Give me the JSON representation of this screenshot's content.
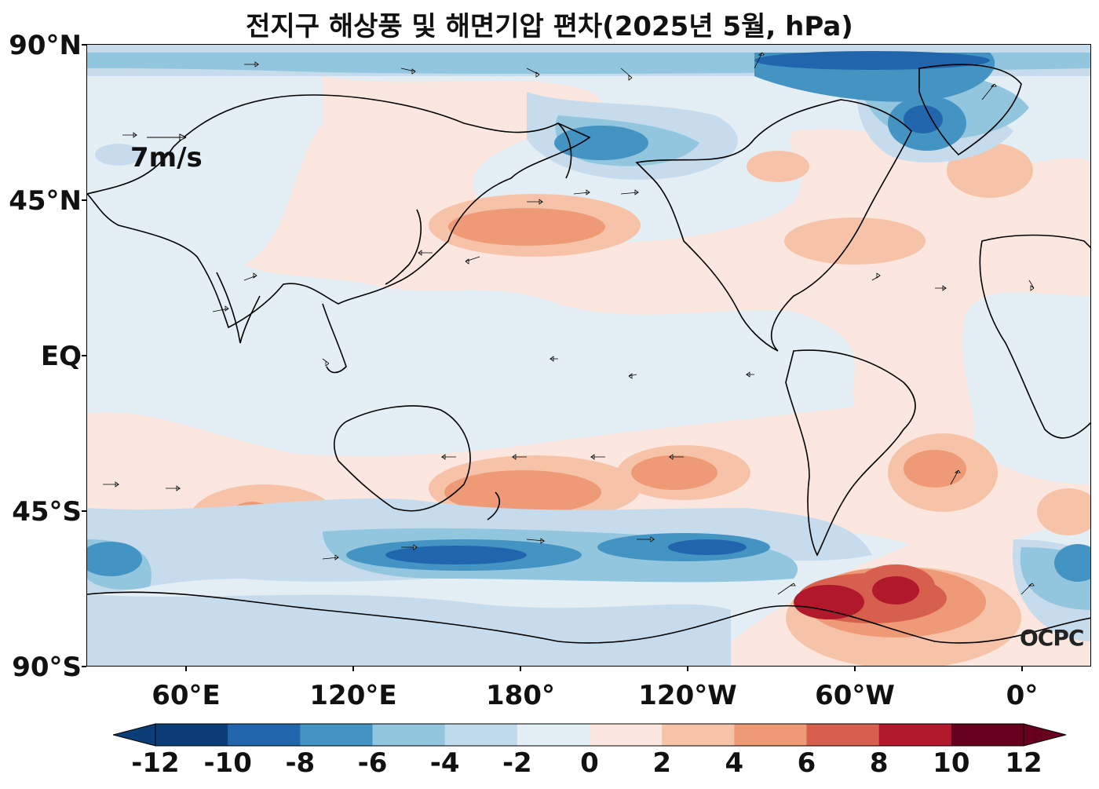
{
  "title": "전지구 해상풍 및 해면기압 편차(2025년 5월, hPa)",
  "lat_labels": [
    "90°N",
    "45°N",
    "EQ",
    "45°S",
    "90°S"
  ],
  "lon_labels": [
    "60°E",
    "120°E",
    "180°",
    "120°W",
    "60°W",
    "0°"
  ],
  "reference_vector_label": "7m/s",
  "logo_text": "OCPC",
  "colorbar": {
    "ticks": [
      "-12",
      "-10",
      "-8",
      "-6",
      "-4",
      "-2",
      "0",
      "2",
      "4",
      "6",
      "8",
      "10",
      "12"
    ],
    "colors": [
      "#0b3d79",
      "#2166ac",
      "#4393c3",
      "#92c5de",
      "#bfdaea",
      "#e4eef5",
      "#fbe7df",
      "#f7c3a8",
      "#ee9a76",
      "#d6604d",
      "#b2182b",
      "#67001f"
    ],
    "extend": "both"
  },
  "palette": {
    "neg_strong": "#2166ac",
    "neg_mid": "#4393c3",
    "neg_weak": "#92c5de",
    "neg_light": "#c6dcec",
    "neutral_neg": "#e4eef5",
    "neutral_pos": "#fbe7df",
    "pos_light": "#f7c3a8",
    "pos_mid": "#ee9a76",
    "pos_strong": "#d6604d",
    "pos_max": "#b2182b",
    "coast": "#000000"
  }
}
